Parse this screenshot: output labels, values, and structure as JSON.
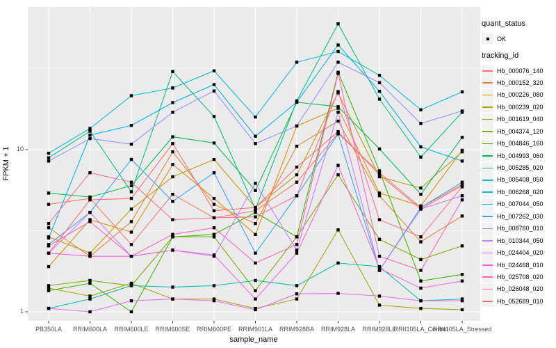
{
  "figure": {
    "axes": {
      "x_title": "sample_name",
      "y_title": "FPKM + 1",
      "y_ticks": [
        "10",
        "1"
      ]
    },
    "legend": {
      "quant_title": "quant_status",
      "quant_items": [
        {
          "label": "OK"
        }
      ],
      "tracking_title": "tracking_id"
    }
  },
  "chart_data": {
    "type": "line",
    "title": "",
    "xlabel": "sample_name",
    "ylabel": "FPKM + 1",
    "legend_position": "right",
    "grid": "on",
    "panel_background": "#EBEBEB",
    "gridline_color": "#FFFFFF",
    "point_color": "#000000",
    "y_axis": {
      "scale": "log10",
      "tick_values": [
        1,
        10
      ],
      "minor_tick_values": [
        3.162,
        31.62
      ],
      "range_approx": [
        1,
        60
      ]
    },
    "quant_status": {
      "title": "quant_status",
      "values": [
        "OK"
      ]
    },
    "categories": [
      "PB350LA",
      "RRIM600LA",
      "RRIM600LE",
      "RRIM600SE",
      "RRIM600PE",
      "RRIM901LA",
      "RRIM928BA",
      "RRIM928LA",
      "RRIM928LE",
      "RRII105LA_Control",
      "RRII105LA_Stressed"
    ],
    "series": [
      {
        "name": "Hb_000076_140",
        "color": "#F8766D",
        "values": [
          4.6,
          5.0,
          2.6,
          5.3,
          3.8,
          4.2,
          6.3,
          12.6,
          7.2,
          4.4,
          6.1
        ]
      },
      {
        "name": "Hb_000152_320",
        "color": "#EA8331",
        "values": [
          3.3,
          2.2,
          3.6,
          9.7,
          4.6,
          3.5,
          10.5,
          15.0,
          5.2,
          2.7,
          3.9
        ]
      },
      {
        "name": "Hb_000226_080",
        "color": "#D89000",
        "values": [
          1.9,
          3.7,
          3.1,
          8.1,
          5.0,
          3.0,
          14.0,
          18.0,
          5.4,
          4.5,
          9.9
        ]
      },
      {
        "name": "Hb_000239_020",
        "color": "#C09B00",
        "values": [
          2.9,
          2.3,
          4.3,
          6.8,
          8.7,
          4.4,
          7.0,
          22.4,
          6.8,
          5.8,
          9.7
        ]
      },
      {
        "name": "Hb_001619_040",
        "color": "#A3A500",
        "values": [
          1.4,
          1.25,
          1.5,
          1.2,
          1.2,
          1.05,
          1.2,
          3.2,
          1.1,
          1.05,
          1.03
        ]
      },
      {
        "name": "Hb_004374_120",
        "color": "#7CAE00",
        "values": [
          1.45,
          1.56,
          1.45,
          2.9,
          2.9,
          1.35,
          2.9,
          7.0,
          2.8,
          2.1,
          2.55
        ]
      },
      {
        "name": "Hb_004846_160",
        "color": "#39B600",
        "values": [
          1.35,
          1.5,
          1.0,
          2.9,
          3.0,
          4.1,
          2.9,
          30.0,
          7.4,
          1.55,
          1.7
        ]
      },
      {
        "name": "Hb_004993_060",
        "color": "#00BB4E",
        "values": [
          5.4,
          5.1,
          6.0,
          12.0,
          11.0,
          5.6,
          19.6,
          18.4,
          10.1,
          5.3,
          11.9
        ]
      },
      {
        "name": "Hb_005285_020",
        "color": "#00C081",
        "values": [
          8.9,
          13.0,
          5.5,
          30.3,
          16.0,
          4.3,
          20.0,
          59.7,
          20.5,
          9.0,
          17.0
        ]
      },
      {
        "name": "Hb_005408_050",
        "color": "#00C0AF",
        "values": [
          1.05,
          1.2,
          1.45,
          1.42,
          1.45,
          1.56,
          1.45,
          2.0,
          1.9,
          1.17,
          1.2
        ]
      },
      {
        "name": "Hb_006268_020",
        "color": "#00BCD8",
        "values": [
          9.5,
          13.5,
          21.5,
          24.0,
          30.6,
          15.9,
          34.6,
          40.3,
          28.7,
          17.6,
          22.7
        ]
      },
      {
        "name": "Hb_007044_050",
        "color": "#00B0F6",
        "values": [
          2.85,
          12.3,
          14.1,
          19.5,
          25.2,
          12.1,
          19.6,
          44.2,
          22.9,
          10.4,
          8.5
        ]
      },
      {
        "name": "Hb_007262_030",
        "color": "#35A2FF",
        "values": [
          2.6,
          4.1,
          8.7,
          4.8,
          7.2,
          2.3,
          5.2,
          12.5,
          1.8,
          4.4,
          6.3
        ]
      },
      {
        "name": "Hb_008760_010",
        "color": "#9590FF",
        "values": [
          8.5,
          11.7,
          10.8,
          17.0,
          23.0,
          10.9,
          14.0,
          34.6,
          25.9,
          14.5,
          17.3
        ]
      },
      {
        "name": "Hb_010344_050",
        "color": "#C77CFF",
        "values": [
          2.3,
          4.1,
          2.2,
          2.4,
          2.2,
          6.2,
          2.4,
          17.0,
          1.8,
          4.3,
          5.2
        ]
      },
      {
        "name": "Hb_024404_020",
        "color": "#E76BF3",
        "values": [
          1.05,
          1.0,
          1.17,
          1.2,
          1.17,
          1.03,
          1.29,
          1.3,
          1.25,
          1.17,
          1.17
        ]
      },
      {
        "name": "Hb_024468_010",
        "color": "#FA62DB",
        "values": [
          2.3,
          2.2,
          2.2,
          2.4,
          2.24,
          1.2,
          2.3,
          8.0,
          1.85,
          1.4,
          1.55
        ]
      },
      {
        "name": "Hb_025708_020",
        "color": "#FF62BC",
        "values": [
          2.55,
          3.6,
          2.2,
          3.0,
          3.3,
          2.0,
          2.6,
          29.5,
          2.2,
          1.8,
          4.9
        ]
      },
      {
        "name": "Hb_026048_020",
        "color": "#FF6A98",
        "values": [
          3.5,
          7.2,
          6.3,
          3.7,
          3.8,
          3.85,
          5.2,
          22.8,
          3.7,
          2.9,
          5.9
        ]
      },
      {
        "name": "Hb_052689_010",
        "color": "#FF6B70",
        "values": [
          2.3,
          4.9,
          5.0,
          10.9,
          4.2,
          4.4,
          7.8,
          12.9,
          7.0,
          4.3,
          6.0
        ]
      }
    ]
  }
}
